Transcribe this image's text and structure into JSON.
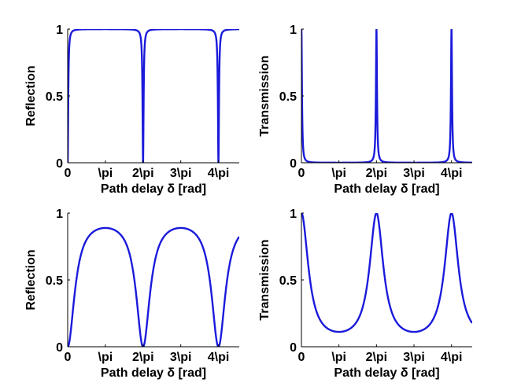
{
  "chart_data": [
    {
      "type": "line",
      "xlabel": "Path delay δ [rad]",
      "ylabel": "Reflection",
      "xlim": [
        0,
        14.3
      ],
      "ylim": [
        0,
        1
      ],
      "x_ticks": [
        {
          "value": 0,
          "label": "0"
        },
        {
          "value": 3.1416,
          "label": "\\pi"
        },
        {
          "value": 6.2832,
          "label": "2\\pi"
        },
        {
          "value": 9.4248,
          "label": "3\\pi"
        },
        {
          "value": 12.5664,
          "label": "4\\pi"
        }
      ],
      "y_ticks": [
        {
          "value": 0,
          "label": "0"
        },
        {
          "value": 0.5,
          "label": "0.5"
        },
        {
          "value": 1,
          "label": "1"
        }
      ],
      "grid": false,
      "color": "#1a1adb",
      "series": [
        {
          "function": "reflection",
          "coefficient_F": 1500
        }
      ]
    },
    {
      "type": "line",
      "xlabel": "Path delay δ [rad]",
      "ylabel": "Transmission",
      "xlim": [
        0,
        14.3
      ],
      "ylim": [
        0,
        1
      ],
      "x_ticks": [
        {
          "value": 0,
          "label": "0"
        },
        {
          "value": 3.1416,
          "label": "\\pi"
        },
        {
          "value": 6.2832,
          "label": "2\\pi"
        },
        {
          "value": 9.4248,
          "label": "3\\pi"
        },
        {
          "value": 12.5664,
          "label": "4\\pi"
        }
      ],
      "y_ticks": [
        {
          "value": 0,
          "label": "0"
        },
        {
          "value": 0.5,
          "label": "0.5"
        },
        {
          "value": 1,
          "label": "1"
        }
      ],
      "grid": false,
      "color": "#1a1adb",
      "series": [
        {
          "function": "transmission",
          "coefficient_F": 1500
        }
      ]
    },
    {
      "type": "line",
      "xlabel": "Path delay δ [rad]",
      "ylabel": "Reflection",
      "xlim": [
        0,
        14.3
      ],
      "ylim": [
        0,
        1
      ],
      "x_ticks": [
        {
          "value": 0,
          "label": "0"
        },
        {
          "value": 3.1416,
          "label": "\\pi"
        },
        {
          "value": 6.2832,
          "label": "2\\pi"
        },
        {
          "value": 9.4248,
          "label": "3\\pi"
        },
        {
          "value": 12.5664,
          "label": "4\\pi"
        }
      ],
      "y_ticks": [
        {
          "value": 0,
          "label": "0"
        },
        {
          "value": 0.5,
          "label": "0.5"
        },
        {
          "value": 1,
          "label": "1"
        }
      ],
      "grid": false,
      "color": "#1a1adb",
      "series": [
        {
          "function": "reflection",
          "coefficient_F": 8
        }
      ]
    },
    {
      "type": "line",
      "xlabel": "Path delay δ [rad]",
      "ylabel": "Transmission",
      "xlim": [
        0,
        14.3
      ],
      "ylim": [
        0,
        1
      ],
      "x_ticks": [
        {
          "value": 0,
          "label": "0"
        },
        {
          "value": 3.1416,
          "label": "\\pi"
        },
        {
          "value": 6.2832,
          "label": "2\\pi"
        },
        {
          "value": 9.4248,
          "label": "3\\pi"
        },
        {
          "value": 12.5664,
          "label": "4\\pi"
        }
      ],
      "y_ticks": [
        {
          "value": 0,
          "label": "0"
        },
        {
          "value": 0.5,
          "label": "0.5"
        },
        {
          "value": 1,
          "label": "1"
        }
      ],
      "grid": false,
      "color": "#1a1adb",
      "series": [
        {
          "function": "transmission",
          "coefficient_F": 8
        }
      ]
    }
  ]
}
